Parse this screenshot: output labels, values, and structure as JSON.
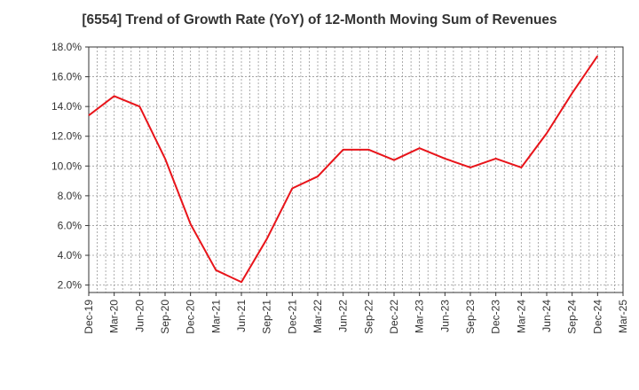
{
  "title": "[6554]  Trend of Growth Rate (YoY) of 12-Month Moving Sum of Revenues",
  "chart_data": {
    "type": "line",
    "title": "[6554]  Trend of Growth Rate (YoY) of 12-Month Moving Sum of Revenues",
    "xlabel": "",
    "ylabel": "",
    "ylim": [
      1.5,
      18.0
    ],
    "y_ticks": [
      "18.0%",
      "16.0%",
      "14.0%",
      "12.0%",
      "10.0%",
      "8.0%",
      "6.0%",
      "4.0%",
      "2.0%"
    ],
    "y_tick_values": [
      18,
      16,
      14,
      12,
      10,
      8,
      6,
      4,
      2
    ],
    "categories": [
      "Dec-19",
      "Mar-20",
      "Jun-20",
      "Sep-20",
      "Dec-20",
      "Mar-21",
      "Jun-21",
      "Sep-21",
      "Dec-21",
      "Mar-22",
      "Jun-22",
      "Sep-22",
      "Dec-22",
      "Mar-23",
      "Jun-23",
      "Sep-23",
      "Dec-23",
      "Mar-24",
      "Jun-24",
      "Sep-24",
      "Dec-24",
      "Mar-25"
    ],
    "grid": true,
    "series": [
      {
        "color": "#e8141a",
        "values": [
          13.4,
          14.7,
          14.0,
          10.5,
          6.1,
          3.0,
          2.2,
          5.1,
          8.5,
          9.3,
          11.1,
          11.1,
          10.4,
          11.2,
          10.5,
          9.9,
          10.5,
          9.9,
          12.2,
          14.9,
          17.4,
          null
        ]
      }
    ]
  }
}
